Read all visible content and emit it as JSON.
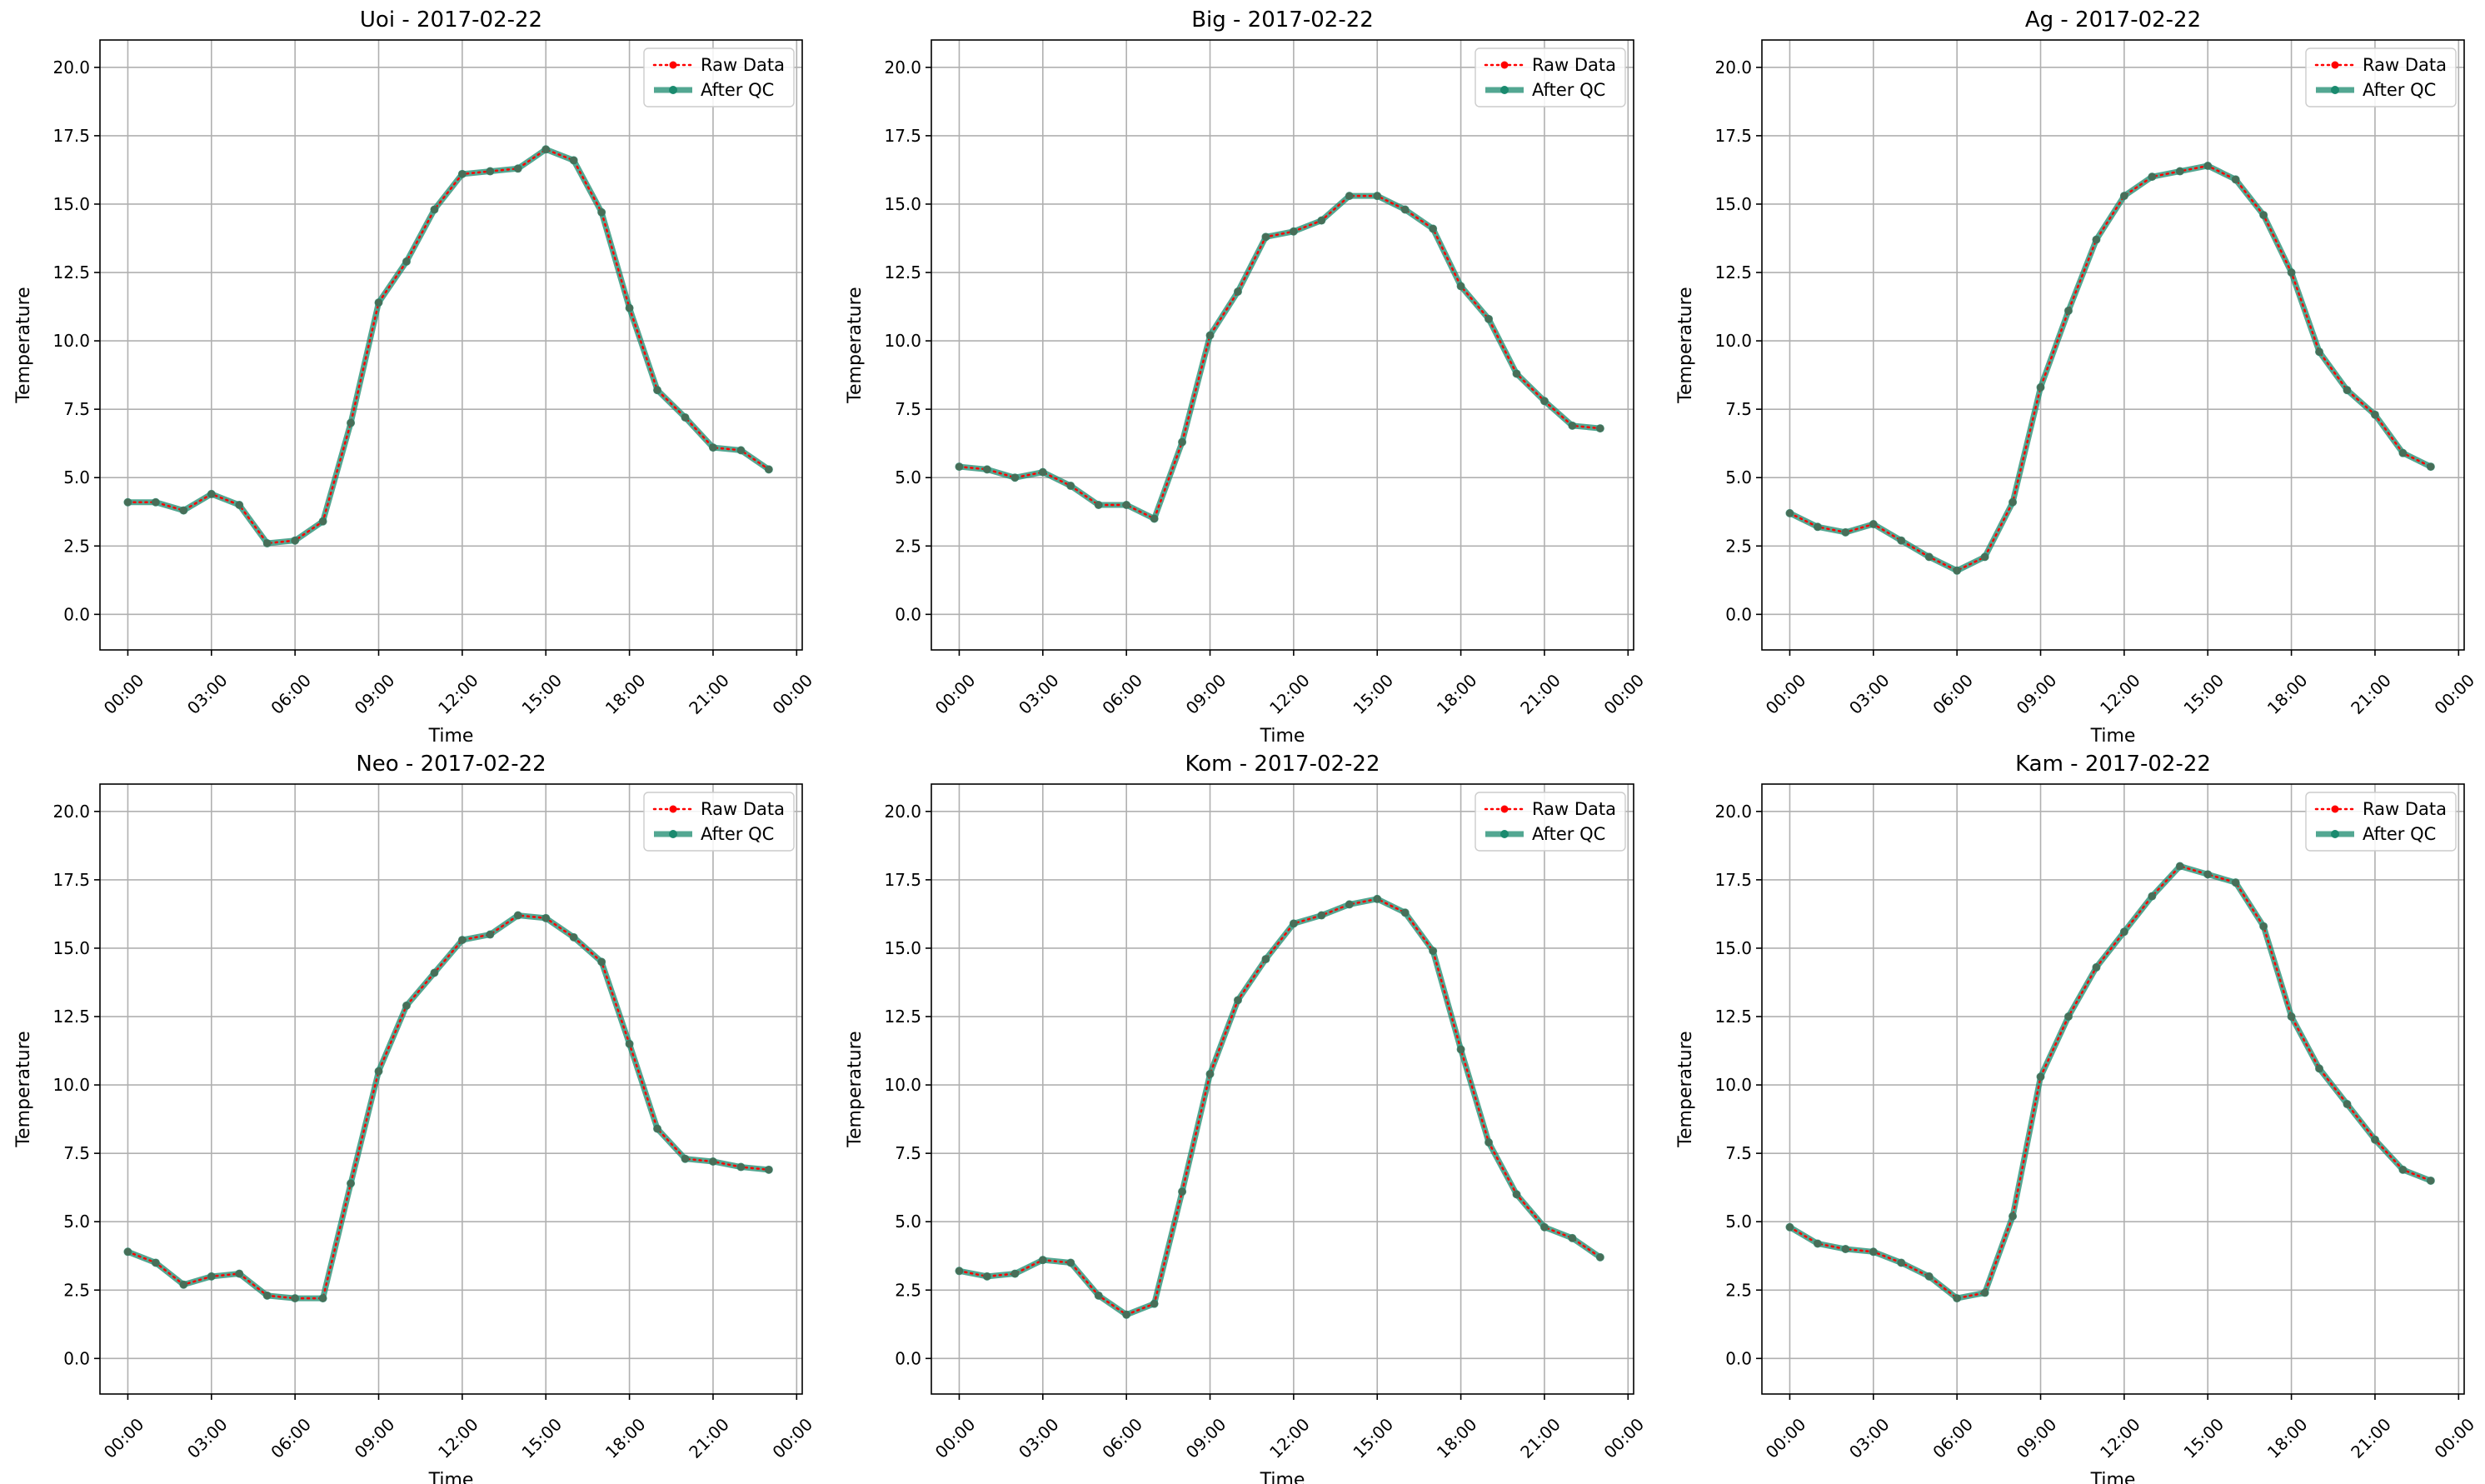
{
  "chart_data": [
    {
      "type": "line",
      "title": "Uoi - 2017-02-22",
      "xlabel": "Time",
      "ylabel": "Temperature",
      "ylim": [
        -1.3,
        21.0
      ],
      "yticks": [
        "0.0",
        "2.5",
        "5.0",
        "7.5",
        "10.0",
        "12.5",
        "15.0",
        "17.5",
        "20.0"
      ],
      "xticks": [
        "00:00",
        "03:00",
        "06:00",
        "09:00",
        "12:00",
        "15:00",
        "18:00",
        "21:00",
        "00:00"
      ],
      "grid": true,
      "legend_position": "top-right",
      "series": [
        {
          "name": "Raw Data",
          "color": "#ff0000",
          "values": [
            4.1,
            4.1,
            3.8,
            4.4,
            4.0,
            2.6,
            2.7,
            3.4,
            7.0,
            11.4,
            12.9,
            14.8,
            16.1,
            16.2,
            16.3,
            17.0,
            16.6,
            14.7,
            11.2,
            8.2,
            7.2,
            6.1,
            6.0,
            5.3
          ]
        },
        {
          "name": "After QC",
          "color": "#1a8a6e",
          "values": [
            4.1,
            4.1,
            3.8,
            4.4,
            4.0,
            2.6,
            2.7,
            3.4,
            7.0,
            11.4,
            12.9,
            14.8,
            16.1,
            16.2,
            16.3,
            17.0,
            16.6,
            14.7,
            11.2,
            8.2,
            7.2,
            6.1,
            6.0,
            5.3
          ]
        }
      ]
    },
    {
      "type": "line",
      "title": "Big - 2017-02-22",
      "xlabel": "Time",
      "ylabel": "Temperature",
      "ylim": [
        -1.3,
        21.0
      ],
      "yticks": [
        "0.0",
        "2.5",
        "5.0",
        "7.5",
        "10.0",
        "12.5",
        "15.0",
        "17.5",
        "20.0"
      ],
      "xticks": [
        "00:00",
        "03:00",
        "06:00",
        "09:00",
        "12:00",
        "15:00",
        "18:00",
        "21:00",
        "00:00"
      ],
      "grid": true,
      "legend_position": "top-right",
      "series": [
        {
          "name": "Raw Data",
          "color": "#ff0000",
          "values": [
            5.4,
            5.3,
            5.0,
            5.2,
            4.7,
            4.0,
            4.0,
            3.5,
            6.3,
            10.2,
            11.8,
            13.8,
            14.0,
            14.4,
            15.3,
            15.3,
            14.8,
            14.1,
            12.0,
            10.8,
            8.8,
            7.8,
            6.9,
            6.8
          ]
        },
        {
          "name": "After QC",
          "color": "#1a8a6e",
          "values": [
            5.4,
            5.3,
            5.0,
            5.2,
            4.7,
            4.0,
            4.0,
            3.5,
            6.3,
            10.2,
            11.8,
            13.8,
            14.0,
            14.4,
            15.3,
            15.3,
            14.8,
            14.1,
            12.0,
            10.8,
            8.8,
            7.8,
            6.9,
            6.8
          ]
        }
      ]
    },
    {
      "type": "line",
      "title": "Ag - 2017-02-22",
      "xlabel": "Time",
      "ylabel": "Temperature",
      "ylim": [
        -1.3,
        21.0
      ],
      "yticks": [
        "0.0",
        "2.5",
        "5.0",
        "7.5",
        "10.0",
        "12.5",
        "15.0",
        "17.5",
        "20.0"
      ],
      "xticks": [
        "00:00",
        "03:00",
        "06:00",
        "09:00",
        "12:00",
        "15:00",
        "18:00",
        "21:00",
        "00:00"
      ],
      "grid": true,
      "legend_position": "top-right",
      "series": [
        {
          "name": "Raw Data",
          "color": "#ff0000",
          "values": [
            3.7,
            3.2,
            3.0,
            3.3,
            2.7,
            2.1,
            1.6,
            2.1,
            4.1,
            8.3,
            11.1,
            13.7,
            15.3,
            16.0,
            16.2,
            16.4,
            15.9,
            14.6,
            12.5,
            9.6,
            8.2,
            7.3,
            5.9,
            5.4
          ]
        },
        {
          "name": "After QC",
          "color": "#1a8a6e",
          "values": [
            3.7,
            3.2,
            3.0,
            3.3,
            2.7,
            2.1,
            1.6,
            2.1,
            4.1,
            8.3,
            11.1,
            13.7,
            15.3,
            16.0,
            16.2,
            16.4,
            15.9,
            14.6,
            12.5,
            9.6,
            8.2,
            7.3,
            5.9,
            5.4
          ]
        }
      ]
    },
    {
      "type": "line",
      "title": "Neo - 2017-02-22",
      "xlabel": "Time",
      "ylabel": "Temperature",
      "ylim": [
        -1.3,
        21.0
      ],
      "yticks": [
        "0.0",
        "2.5",
        "5.0",
        "7.5",
        "10.0",
        "12.5",
        "15.0",
        "17.5",
        "20.0"
      ],
      "xticks": [
        "00:00",
        "03:00",
        "06:00",
        "09:00",
        "12:00",
        "15:00",
        "18:00",
        "21:00",
        "00:00"
      ],
      "grid": true,
      "legend_position": "top-right",
      "series": [
        {
          "name": "Raw Data",
          "color": "#ff0000",
          "values": [
            3.9,
            3.5,
            2.7,
            3.0,
            3.1,
            2.3,
            2.2,
            2.2,
            6.4,
            10.5,
            12.9,
            14.1,
            15.3,
            15.5,
            16.2,
            16.1,
            15.4,
            14.5,
            11.5,
            8.4,
            7.3,
            7.2,
            7.0,
            6.9
          ]
        },
        {
          "name": "After QC",
          "color": "#1a8a6e",
          "values": [
            3.9,
            3.5,
            2.7,
            3.0,
            3.1,
            2.3,
            2.2,
            2.2,
            6.4,
            10.5,
            12.9,
            14.1,
            15.3,
            15.5,
            16.2,
            16.1,
            15.4,
            14.5,
            11.5,
            8.4,
            7.3,
            7.2,
            7.0,
            6.9
          ]
        }
      ]
    },
    {
      "type": "line",
      "title": "Kom - 2017-02-22",
      "xlabel": "Time",
      "ylabel": "Temperature",
      "ylim": [
        -1.3,
        21.0
      ],
      "yticks": [
        "0.0",
        "2.5",
        "5.0",
        "7.5",
        "10.0",
        "12.5",
        "15.0",
        "17.5",
        "20.0"
      ],
      "xticks": [
        "00:00",
        "03:00",
        "06:00",
        "09:00",
        "12:00",
        "15:00",
        "18:00",
        "21:00",
        "00:00"
      ],
      "grid": true,
      "legend_position": "top-right",
      "series": [
        {
          "name": "Raw Data",
          "color": "#ff0000",
          "values": [
            3.2,
            3.0,
            3.1,
            3.6,
            3.5,
            2.3,
            1.6,
            2.0,
            6.1,
            10.4,
            13.1,
            14.6,
            15.9,
            16.2,
            16.6,
            16.8,
            16.3,
            14.9,
            11.3,
            7.9,
            6.0,
            4.8,
            4.4,
            3.7
          ]
        },
        {
          "name": "After QC",
          "color": "#1a8a6e",
          "values": [
            3.2,
            3.0,
            3.1,
            3.6,
            3.5,
            2.3,
            1.6,
            2.0,
            6.1,
            10.4,
            13.1,
            14.6,
            15.9,
            16.2,
            16.6,
            16.8,
            16.3,
            14.9,
            11.3,
            7.9,
            6.0,
            4.8,
            4.4,
            3.7
          ]
        }
      ]
    },
    {
      "type": "line",
      "title": "Kam - 2017-02-22",
      "xlabel": "Time",
      "ylabel": "Temperature",
      "ylim": [
        -1.3,
        21.0
      ],
      "yticks": [
        "0.0",
        "2.5",
        "5.0",
        "7.5",
        "10.0",
        "12.5",
        "15.0",
        "17.5",
        "20.0"
      ],
      "xticks": [
        "00:00",
        "03:00",
        "06:00",
        "09:00",
        "12:00",
        "15:00",
        "18:00",
        "21:00",
        "00:00"
      ],
      "grid": true,
      "legend_position": "top-right",
      "series": [
        {
          "name": "Raw Data",
          "color": "#ff0000",
          "values": [
            4.8,
            4.2,
            4.0,
            3.9,
            3.5,
            3.0,
            2.2,
            2.4,
            5.2,
            10.3,
            12.5,
            14.3,
            15.6,
            16.9,
            18.0,
            17.7,
            17.4,
            15.8,
            12.5,
            10.6,
            9.3,
            8.0,
            6.9,
            6.5
          ]
        },
        {
          "name": "After QC",
          "color": "#1a8a6e",
          "values": [
            4.8,
            4.2,
            4.0,
            3.9,
            3.5,
            3.0,
            2.2,
            2.4,
            5.2,
            10.3,
            12.5,
            14.3,
            15.6,
            16.9,
            18.0,
            17.7,
            17.4,
            15.8,
            12.5,
            10.6,
            9.3,
            8.0,
            6.9,
            6.5
          ]
        }
      ]
    }
  ]
}
